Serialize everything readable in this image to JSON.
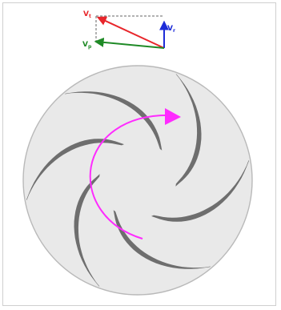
{
  "colors": {
    "disk_fill": "#e9e9e9",
    "disk_stroke": "#b9b9b9",
    "vane": "#6e6e6e",
    "rotation_arrow": "#ff2bff",
    "velocity_absolute": "#e8262b",
    "velocity_radial": "#1d2cd8",
    "velocity_tangential": "#1f8a26",
    "construction_line": "#666666"
  },
  "labels": {
    "v_absolute": {
      "letter": "V",
      "sub": "t"
    },
    "v_radial": {
      "letter": "V",
      "sub": "r"
    },
    "v_tangential": {
      "letter": "V",
      "sub": "p"
    }
  },
  "vane_count": 6
}
